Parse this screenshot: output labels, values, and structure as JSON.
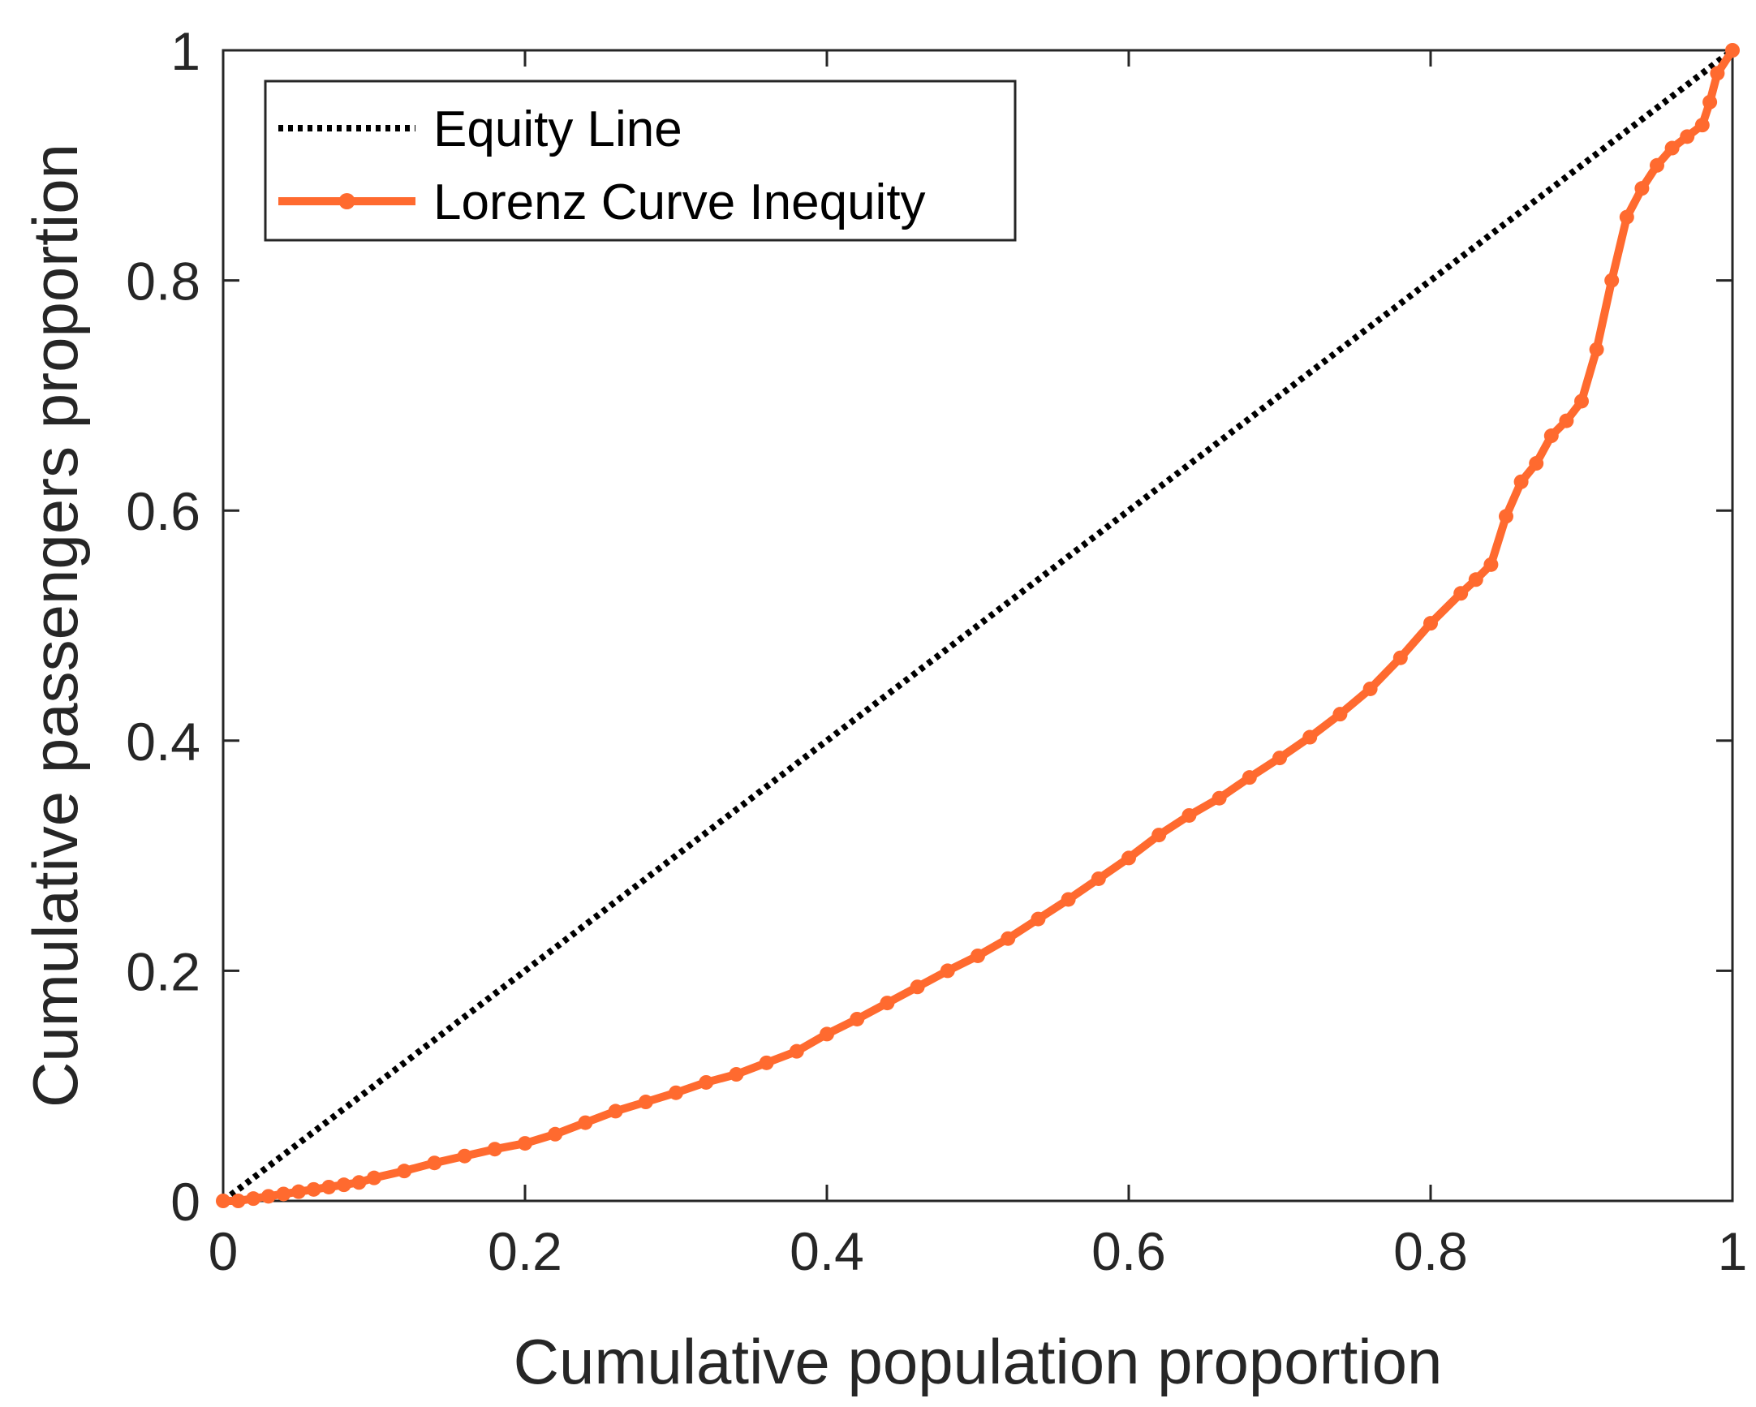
{
  "chart_data": {
    "type": "line",
    "title": "",
    "xlabel": "Cumulative population proportion",
    "ylabel": "Cumulative passengers proportion",
    "xlim": [
      0,
      1
    ],
    "ylim": [
      0,
      1
    ],
    "x_ticks": [
      0,
      0.2,
      0.4,
      0.6,
      0.8,
      1
    ],
    "x_tick_labels": [
      "0",
      "0.2",
      "0.4",
      "0.6",
      "0.8",
      "1"
    ],
    "y_ticks": [
      0,
      0.2,
      0.4,
      0.6,
      0.8,
      1
    ],
    "y_tick_labels": [
      "0",
      "0.2",
      "0.4",
      "0.6",
      "0.8",
      "1"
    ],
    "grid": false,
    "legend": {
      "location": "top-left",
      "entries": [
        "Equity Line",
        "Lorenz Curve Inequity"
      ]
    },
    "series": [
      {
        "name": "Equity Line",
        "style": "dotted",
        "color": "#000000",
        "markers": false,
        "x": [
          0,
          1
        ],
        "y": [
          0,
          1
        ]
      },
      {
        "name": "Lorenz Curve Inequity",
        "style": "solid",
        "color": "#FF6A2F",
        "markers": true,
        "x": [
          0,
          0.01,
          0.02,
          0.03,
          0.04,
          0.05,
          0.06,
          0.07,
          0.08,
          0.09,
          0.1,
          0.12,
          0.14,
          0.16,
          0.18,
          0.2,
          0.22,
          0.24,
          0.26,
          0.28,
          0.3,
          0.32,
          0.34,
          0.36,
          0.38,
          0.4,
          0.42,
          0.44,
          0.46,
          0.48,
          0.5,
          0.52,
          0.54,
          0.56,
          0.58,
          0.6,
          0.62,
          0.64,
          0.66,
          0.68,
          0.7,
          0.72,
          0.74,
          0.76,
          0.78,
          0.8,
          0.82,
          0.83,
          0.84,
          0.85,
          0.86,
          0.87,
          0.88,
          0.89,
          0.9,
          0.91,
          0.92,
          0.93,
          0.94,
          0.95,
          0.96,
          0.97,
          0.98,
          0.985,
          0.99,
          1
        ],
        "y": [
          0,
          0,
          0.002,
          0.004,
          0.006,
          0.008,
          0.01,
          0.012,
          0.014,
          0.016,
          0.02,
          0.026,
          0.033,
          0.039,
          0.045,
          0.05,
          0.058,
          0.068,
          0.078,
          0.086,
          0.094,
          0.103,
          0.11,
          0.12,
          0.13,
          0.145,
          0.158,
          0.172,
          0.186,
          0.2,
          0.213,
          0.228,
          0.245,
          0.262,
          0.28,
          0.298,
          0.318,
          0.335,
          0.35,
          0.368,
          0.385,
          0.403,
          0.423,
          0.445,
          0.472,
          0.502,
          0.528,
          0.54,
          0.553,
          0.595,
          0.625,
          0.641,
          0.665,
          0.678,
          0.695,
          0.74,
          0.8,
          0.855,
          0.88,
          0.9,
          0.915,
          0.925,
          0.935,
          0.955,
          0.98,
          1
        ]
      }
    ]
  }
}
